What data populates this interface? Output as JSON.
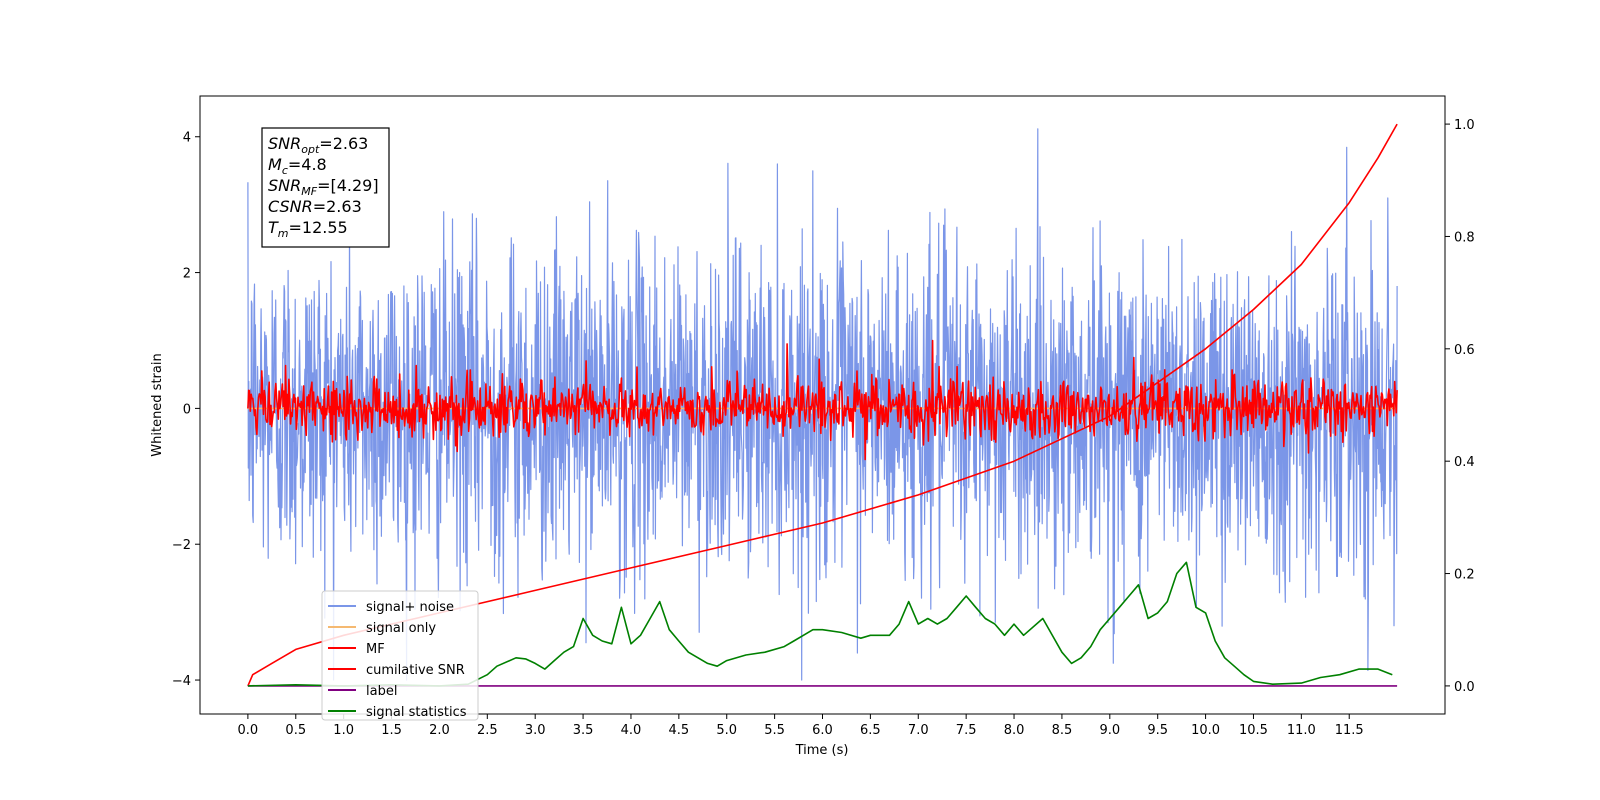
{
  "chart_data": {
    "type": "line",
    "xlabel": "Time (s)",
    "ylabel_left": "Whitened strain",
    "ylabel_right": "",
    "xlim": [
      -0.5,
      12.5
    ],
    "ylim_left": [
      -4.5,
      4.6
    ],
    "ylim_right": [
      -0.05,
      1.05
    ],
    "x_ticks": [
      "0.0",
      "0.5",
      "1.0",
      "1.5",
      "2.0",
      "2.5",
      "3.0",
      "3.5",
      "4.0",
      "4.5",
      "5.0",
      "5.5",
      "6.0",
      "6.5",
      "7.0",
      "7.5",
      "8.0",
      "8.5",
      "9.0",
      "9.5",
      "10.0",
      "10.5",
      "11.0",
      "11.5"
    ],
    "y_ticks_left": [
      "−4",
      "−2",
      "0",
      "2",
      "4"
    ],
    "y_ticks_right": [
      "0.0",
      "0.2",
      "0.4",
      "0.6",
      "0.8",
      "1.0"
    ],
    "grid": false,
    "legend_position": "lower-left",
    "annotation": {
      "lines": [
        {
          "base": "SNR",
          "sub": "opt",
          "value": "=2.63"
        },
        {
          "base": "M",
          "sub": "c",
          "value": "=4.8"
        },
        {
          "base": "SNR",
          "sub": "MF",
          "value": "=[4.29]"
        },
        {
          "base": "CSNR",
          "sub": "",
          "value": "=2.63"
        },
        {
          "base": "T",
          "sub": "m",
          "value": "=12.55"
        }
      ]
    },
    "series": [
      {
        "name": "signal+ noise",
        "color": "#7b96e8",
        "axis": "left",
        "kind": "noise",
        "x_range": [
          0.0,
          12.0
        ],
        "std": 1.2,
        "peak_range": [
          -4.0,
          4.15
        ]
      },
      {
        "name": "signal only",
        "color": "#f5b971",
        "axis": "left",
        "kind": "flat",
        "x_range": [
          0.0,
          12.0
        ],
        "value": 0.0
      },
      {
        "name": "MF",
        "color": "#ff0000",
        "axis": "left",
        "kind": "noise",
        "x_range": [
          0.0,
          12.0
        ],
        "std": 0.22,
        "spikes": [
          {
            "x": 5.63,
            "y": 0.95
          },
          {
            "x": 7.15,
            "y": 1.0
          },
          {
            "x": 9.25,
            "y": 0.75
          }
        ]
      },
      {
        "name": "cumilative SNR",
        "color": "#ff0000",
        "axis": "right",
        "kind": "curve",
        "x": [
          0.0,
          0.05,
          0.25,
          0.5,
          1.0,
          2.0,
          3.0,
          4.0,
          5.0,
          6.0,
          7.0,
          8.0,
          9.0,
          10.0,
          10.5,
          11.0,
          11.5,
          11.8,
          12.0
        ],
        "y": [
          0.0,
          0.02,
          0.04,
          0.065,
          0.09,
          0.13,
          0.17,
          0.21,
          0.25,
          0.29,
          0.34,
          0.4,
          0.48,
          0.6,
          0.67,
          0.75,
          0.86,
          0.94,
          1.0
        ]
      },
      {
        "name": "label",
        "color": "#800080",
        "axis": "right",
        "kind": "flat",
        "x_range": [
          0.0,
          12.0
        ],
        "value": 0.0
      },
      {
        "name": "signal statistics",
        "color": "#008000",
        "axis": "right",
        "kind": "curve",
        "x": [
          0.0,
          0.5,
          1.0,
          1.5,
          2.0,
          2.3,
          2.5,
          2.6,
          2.8,
          2.9,
          3.0,
          3.1,
          3.2,
          3.3,
          3.4,
          3.5,
          3.6,
          3.7,
          3.8,
          3.9,
          4.0,
          4.1,
          4.2,
          4.3,
          4.4,
          4.5,
          4.6,
          4.7,
          4.8,
          4.9,
          5.0,
          5.2,
          5.4,
          5.6,
          5.7,
          5.9,
          6.0,
          6.2,
          6.4,
          6.5,
          6.7,
          6.8,
          6.9,
          7.0,
          7.1,
          7.2,
          7.3,
          7.4,
          7.5,
          7.6,
          7.7,
          7.8,
          7.9,
          8.0,
          8.1,
          8.3,
          8.5,
          8.6,
          8.7,
          8.8,
          8.9,
          9.0,
          9.1,
          9.2,
          9.3,
          9.4,
          9.5,
          9.6,
          9.7,
          9.8,
          9.9,
          10.0,
          10.1,
          10.2,
          10.3,
          10.4,
          10.5,
          10.7,
          11.0,
          11.2,
          11.4,
          11.6,
          11.8,
          11.95
        ],
        "y": [
          0.0,
          0.002,
          0.0,
          0.002,
          0.0,
          0.003,
          0.02,
          0.035,
          0.05,
          0.048,
          0.04,
          0.03,
          0.045,
          0.06,
          0.07,
          0.12,
          0.09,
          0.08,
          0.075,
          0.14,
          0.075,
          0.09,
          0.12,
          0.15,
          0.1,
          0.08,
          0.06,
          0.05,
          0.04,
          0.035,
          0.045,
          0.055,
          0.06,
          0.07,
          0.08,
          0.1,
          0.1,
          0.095,
          0.085,
          0.09,
          0.09,
          0.11,
          0.15,
          0.11,
          0.12,
          0.11,
          0.12,
          0.14,
          0.16,
          0.14,
          0.12,
          0.11,
          0.09,
          0.11,
          0.09,
          0.12,
          0.06,
          0.04,
          0.05,
          0.07,
          0.1,
          0.12,
          0.14,
          0.16,
          0.18,
          0.12,
          0.13,
          0.15,
          0.2,
          0.22,
          0.14,
          0.13,
          0.08,
          0.05,
          0.035,
          0.02,
          0.008,
          0.003,
          0.005,
          0.015,
          0.02,
          0.03,
          0.03,
          0.02
        ]
      }
    ]
  }
}
